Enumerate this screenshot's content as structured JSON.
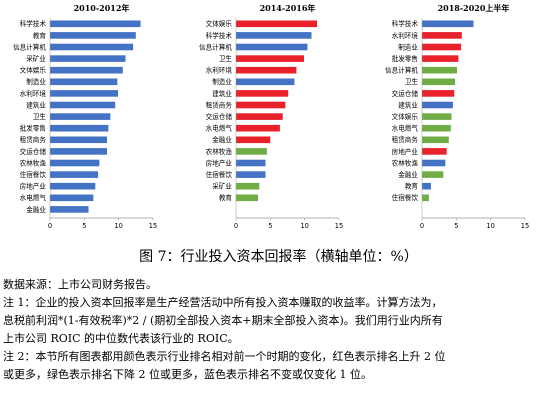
{
  "colors": {
    "blue": "#4472C4",
    "red": "#E8212A",
    "green": "#70AD47"
  },
  "chart_data": [
    {
      "type": "bar",
      "orientation": "horizontal",
      "title": "2010-2012年",
      "xlim": [
        0,
        15
      ],
      "xticks": [
        "0",
        "5",
        "10",
        "15"
      ],
      "categories": [
        "科学技术",
        "教育",
        "信息计算机",
        "采矿业",
        "文体娱乐",
        "制造业",
        "水利环境",
        "建筑业",
        "卫生",
        "批发零售",
        "租赁商务",
        "交运仓储",
        "农林牧渔",
        "住宿餐饮",
        "房地产业",
        "水电燃气",
        "金融业"
      ],
      "values": [
        13.2,
        12.5,
        12.1,
        11.0,
        10.6,
        9.8,
        9.9,
        9.5,
        8.8,
        8.5,
        8.3,
        8.3,
        7.2,
        7.0,
        6.6,
        6.3,
        5.6
      ],
      "colors": [
        "blue",
        "blue",
        "blue",
        "blue",
        "blue",
        "blue",
        "blue",
        "blue",
        "blue",
        "blue",
        "blue",
        "blue",
        "blue",
        "blue",
        "blue",
        "blue",
        "blue"
      ]
    },
    {
      "type": "bar",
      "orientation": "horizontal",
      "title": "2014-2016年",
      "xlim": [
        0,
        15
      ],
      "xticks": [
        "0",
        "5",
        "10",
        "15"
      ],
      "categories": [
        "文体娱乐",
        "科学技术",
        "信息计算机",
        "卫生",
        "水利环境",
        "制造业",
        "建筑业",
        "租赁商务",
        "交运仓储",
        "水电燃气",
        "金融业",
        "农林牧渔",
        "房地产业",
        "住宿餐饮",
        "采矿业",
        "教育"
      ],
      "values": [
        11.8,
        11.0,
        10.4,
        9.9,
        8.8,
        8.5,
        7.6,
        7.2,
        6.8,
        6.4,
        5.0,
        4.5,
        4.3,
        4.3,
        3.4,
        3.2
      ],
      "colors": [
        "red",
        "blue",
        "blue",
        "red",
        "red",
        "blue",
        "red",
        "red",
        "red",
        "red",
        "red",
        "green",
        "blue",
        "blue",
        "green",
        "green"
      ]
    },
    {
      "type": "bar",
      "orientation": "horizontal",
      "title": "2018-2020上半年",
      "xlim": [
        0,
        15
      ],
      "xticks": [
        "0",
        "5",
        "10",
        "15"
      ],
      "categories": [
        "科学技术",
        "水利环境",
        "制造业",
        "批发零售",
        "信息计算机",
        "卫生",
        "交运仓储",
        "建筑业",
        "文体娱乐",
        "水电燃气",
        "租赁商务",
        "房地产业",
        "农林牧渔",
        "金融业",
        "教育",
        "住宿餐饮"
      ],
      "values": [
        7.5,
        5.8,
        5.7,
        5.3,
        5.1,
        4.8,
        4.7,
        4.5,
        4.3,
        4.2,
        3.9,
        3.6,
        3.4,
        3.1,
        1.3,
        1.0
      ],
      "colors": [
        "blue",
        "red",
        "red",
        "red",
        "green",
        "green",
        "red",
        "blue",
        "green",
        "green",
        "green",
        "red",
        "blue",
        "green",
        "blue",
        "green"
      ]
    }
  ],
  "caption": "图 7：行业投入资本回报率（横轴单位：%）",
  "notes": [
    "数据来源：上市公司财务报告。",
    "注 1：企业的投入资本回报率是生产经营活动中所有投入资本赚取的收益率。计算方法为，",
    "息税前利润*(1-有效税率)*2 / (期初全部投入资本+期末全部投入资本)。我们用行业内所有",
    "上市公司 ROIC 的中位数代表该行业的 ROIC。",
    "注 2：本节所有图表都用颜色表示行业排名相对前一个时期的变化，红色表示排名上升 2 位",
    "或更多，绿色表示排名下降 2 位或更多，蓝色表示排名不变或仅变化 1 位。"
  ]
}
